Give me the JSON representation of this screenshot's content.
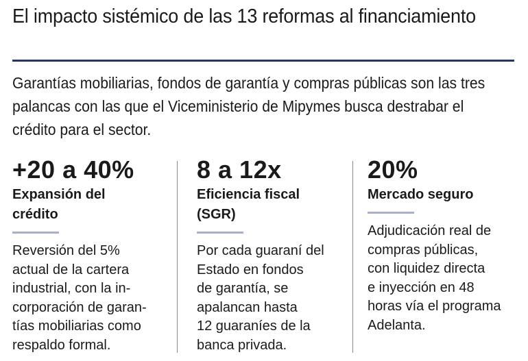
{
  "header": {
    "title": "El impacto sistémico de las 13 reformas al financiamiento"
  },
  "intro": "Garantías mobiliarias, fondos de garantía y compras públicas son las tres palancas con las que el Viceministerio de Mipymes busca destrabar el crédito para el sector.",
  "stats": [
    {
      "value": "+20 a 40%",
      "label": "Expansión del\ncrédito",
      "description": "Reversión del 5%\nactual de la cartera\nindustrial, con la in-\ncorporación de garan-\ntías mobiliarias como\nrespaldo formal."
    },
    {
      "value": "8 a 12x",
      "label": "Eficiencia fiscal\n(SGR)",
      "description": "Por cada guaraní del\nEstado en fondos\nde garantía, se\napalancan hasta\n12 guaraníes de la\nbanca privada."
    },
    {
      "value": "20%",
      "label": "Mercado seguro",
      "description": "Adjudicación real de\ncompras públicas,\ncon liquidez directa\ne inyección en 48\nhoras vía el programa\nAdelanta."
    }
  ],
  "colors": {
    "rule": "#23346e",
    "accent": "#a9afd0",
    "divider": "#8a8a8a",
    "text": "#1a1a1a"
  }
}
